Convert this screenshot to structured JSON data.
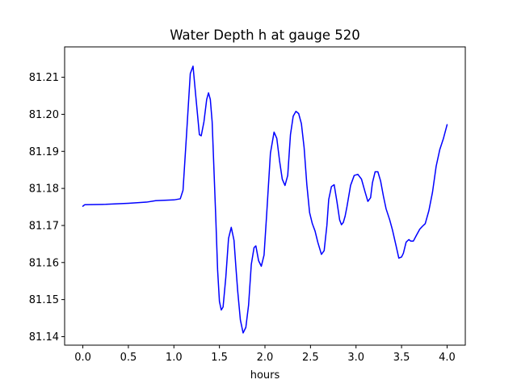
{
  "chart_data": {
    "type": "line",
    "title": "Water Depth h at gauge 520",
    "xlabel": "hours",
    "ylabel": "",
    "xlim": [
      -0.2,
      4.2
    ],
    "ylim": [
      81.1377,
      81.2182
    ],
    "xticks": [
      0.0,
      0.5,
      1.0,
      1.5,
      2.0,
      2.5,
      3.0,
      3.5,
      4.0
    ],
    "xtick_labels": [
      "0.0",
      "0.5",
      "1.0",
      "1.5",
      "2.0",
      "2.5",
      "3.0",
      "3.5",
      "4.0"
    ],
    "yticks": [
      81.14,
      81.15,
      81.16,
      81.17,
      81.18,
      81.19,
      81.2,
      81.21
    ],
    "ytick_labels": [
      "81.14",
      "81.15",
      "81.16",
      "81.17",
      "81.18",
      "81.19",
      "81.20",
      "81.21"
    ],
    "grid": false,
    "series": [
      {
        "color": "#0000ff",
        "x": [
          0.0,
          0.02,
          0.25,
          0.5,
          0.7,
          0.8,
          1.0,
          1.07,
          1.1,
          1.14,
          1.18,
          1.21,
          1.24,
          1.28,
          1.3,
          1.33,
          1.36,
          1.38,
          1.4,
          1.42,
          1.44,
          1.46,
          1.48,
          1.5,
          1.52,
          1.54,
          1.57,
          1.6,
          1.63,
          1.66,
          1.68,
          1.7,
          1.73,
          1.76,
          1.79,
          1.82,
          1.85,
          1.88,
          1.9,
          1.93,
          1.96,
          1.99,
          2.02,
          2.06,
          2.1,
          2.13,
          2.16,
          2.19,
          2.22,
          2.25,
          2.28,
          2.31,
          2.34,
          2.37,
          2.4,
          2.43,
          2.46,
          2.49,
          2.52,
          2.55,
          2.58,
          2.62,
          2.65,
          2.68,
          2.7,
          2.73,
          2.76,
          2.79,
          2.82,
          2.84,
          2.86,
          2.88,
          2.9,
          2.94,
          2.98,
          3.02,
          3.06,
          3.1,
          3.13,
          3.16,
          3.18,
          3.21,
          3.24,
          3.27,
          3.3,
          3.33,
          3.37,
          3.4,
          3.44,
          3.47,
          3.5,
          3.52,
          3.55,
          3.58,
          3.6,
          3.63,
          3.66,
          3.7,
          3.73,
          3.76,
          3.8,
          3.84,
          3.88,
          3.92,
          3.96,
          4.0
        ],
        "values": [
          81.1752,
          81.1756,
          81.1757,
          81.176,
          81.1763,
          81.1767,
          81.1769,
          81.1772,
          81.1795,
          81.195,
          81.211,
          81.213,
          81.205,
          81.1945,
          81.1942,
          81.198,
          81.204,
          81.2058,
          81.204,
          81.198,
          81.185,
          81.172,
          81.158,
          81.1495,
          81.1472,
          81.148,
          81.156,
          81.1665,
          81.1695,
          81.166,
          81.159,
          81.1525,
          81.1445,
          81.141,
          81.1425,
          81.1485,
          81.1595,
          81.164,
          81.1645,
          81.1605,
          81.159,
          81.162,
          81.1735,
          81.1895,
          81.1952,
          81.1935,
          81.1875,
          81.1825,
          81.1808,
          81.1835,
          81.1945,
          81.1995,
          81.2008,
          81.2002,
          81.1975,
          81.191,
          81.181,
          81.1735,
          81.1705,
          81.1685,
          81.1655,
          81.1622,
          81.1632,
          81.17,
          81.177,
          81.1805,
          81.181,
          81.1765,
          81.1715,
          81.1702,
          81.1708,
          81.1725,
          81.175,
          81.1808,
          81.1835,
          81.1838,
          81.1825,
          81.179,
          81.1765,
          81.1775,
          81.1815,
          81.1845,
          81.1845,
          81.182,
          81.178,
          81.1745,
          81.1715,
          81.1688,
          81.1645,
          81.1612,
          81.1615,
          81.1625,
          81.1655,
          81.1662,
          81.1658,
          81.1658,
          81.1672,
          81.169,
          81.1698,
          81.1705,
          81.174,
          81.179,
          81.186,
          81.1905,
          81.1935,
          81.1972
        ]
      }
    ]
  }
}
